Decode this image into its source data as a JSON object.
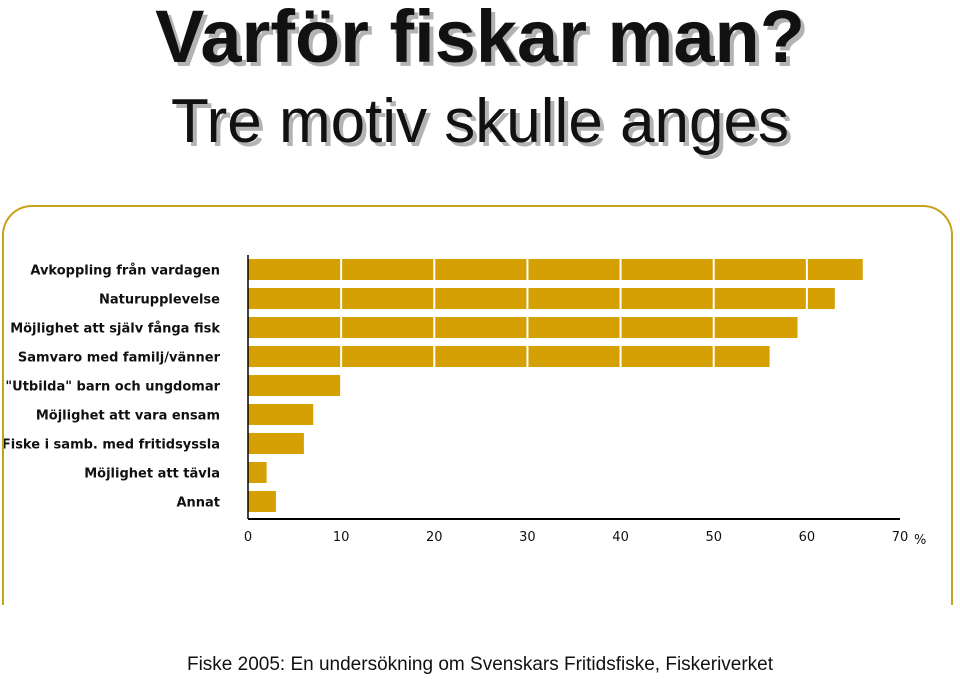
{
  "header": {
    "title": "Varför fiskar man?",
    "subtitle": "Tre motiv skulle anges"
  },
  "footer": {
    "source": "Fiske 2005: En undersökning om Svenskars Fritidsfiske, Fiskeriverket"
  },
  "colors": {
    "bar": "#d4a004",
    "frame": "#c9a21d",
    "axis": "#000000"
  },
  "chart_data": {
    "type": "bar",
    "orientation": "horizontal",
    "categories": [
      "Avkoppling från vardagen",
      "Naturupplevelse",
      "Möjlighet att själv fånga fisk",
      "Samvaro med familj/vänner",
      "\"Utbilda\" barn och ungdomar",
      "Möjlighet att vara ensam",
      "Fiske i samb. med fritidsyssla",
      "Möjlighet att tävla",
      "Annat"
    ],
    "values": [
      66,
      63,
      59,
      56,
      10,
      7,
      6,
      2,
      3
    ],
    "xlim": [
      0,
      70
    ],
    "xticks": [
      0,
      10,
      20,
      30,
      40,
      50,
      60,
      70
    ],
    "xlabel": "%",
    "gridlines": "vertical white dividers at each tick",
    "legend": "none"
  }
}
